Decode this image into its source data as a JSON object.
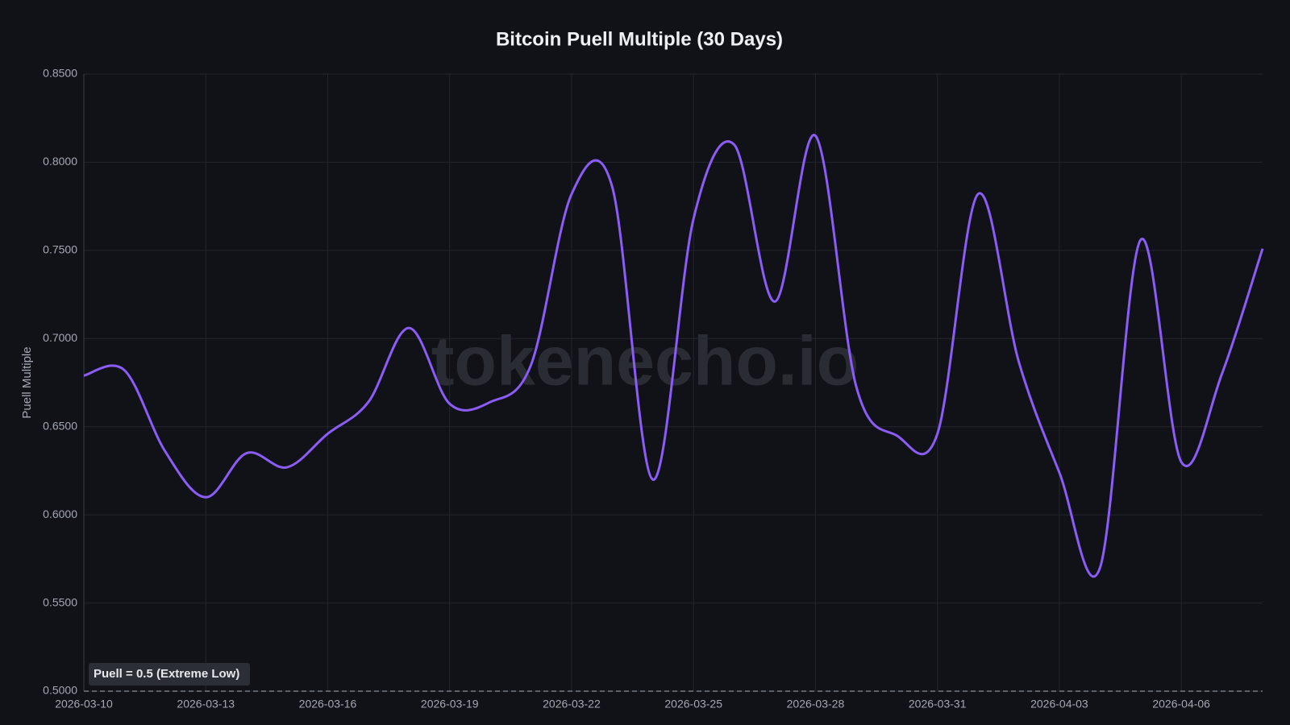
{
  "chart_data": {
    "type": "line",
    "title": "Bitcoin Puell Multiple (30 Days)",
    "watermark": "tokenecho.io",
    "y_label": "Puell Multiple",
    "x": [
      "2026-03-10",
      "2026-03-11",
      "2026-03-12",
      "2026-03-13",
      "2026-03-14",
      "2026-03-15",
      "2026-03-16",
      "2026-03-17",
      "2026-03-18",
      "2026-03-19",
      "2026-03-20",
      "2026-03-21",
      "2026-03-22",
      "2026-03-23",
      "2026-03-24",
      "2026-03-25",
      "2026-03-26",
      "2026-03-27",
      "2026-03-28",
      "2026-03-29",
      "2026-03-30",
      "2026-03-31",
      "2026-04-01",
      "2026-04-02",
      "2026-04-03",
      "2026-04-04",
      "2026-04-05",
      "2026-04-06",
      "2026-04-07",
      "2026-04-08"
    ],
    "series": [
      {
        "name": "Puell Multiple",
        "color": "#8b5cf6",
        "values": [
          0.679,
          0.682,
          0.636,
          0.61,
          0.635,
          0.627,
          0.646,
          0.664,
          0.706,
          0.663,
          0.664,
          0.685,
          0.782,
          0.786,
          0.62,
          0.768,
          0.81,
          0.721,
          0.815,
          0.673,
          0.645,
          0.646,
          0.782,
          0.687,
          0.624,
          0.57,
          0.756,
          0.63,
          0.68,
          0.751
        ]
      }
    ],
    "xticks": [
      "2026-03-10",
      "2026-03-13",
      "2026-03-16",
      "2026-03-19",
      "2026-03-22",
      "2026-03-25",
      "2026-03-28",
      "2026-03-31",
      "2026-04-03",
      "2026-04-06"
    ],
    "ylim": [
      0.5,
      0.85
    ],
    "yticks": [
      {
        "value": 0.5,
        "label": "0.5000"
      },
      {
        "value": 0.55,
        "label": "0.5500"
      },
      {
        "value": 0.6,
        "label": "0.6000"
      },
      {
        "value": 0.65,
        "label": "0.6500"
      },
      {
        "value": 0.7,
        "label": "0.7000"
      },
      {
        "value": 0.75,
        "label": "0.7500"
      },
      {
        "value": 0.8,
        "label": "0.8000"
      },
      {
        "value": 0.85,
        "label": "0.8500"
      }
    ],
    "grid": true,
    "threshold": {
      "value": 0.5,
      "label": "Puell = 0.5 (Extreme Low)"
    }
  }
}
